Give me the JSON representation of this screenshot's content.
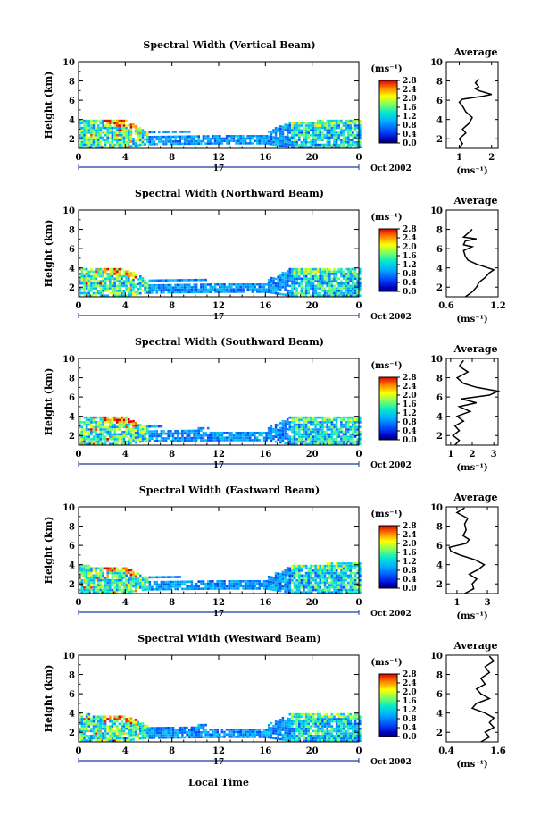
{
  "panels": [
    {
      "title": "Spectral Width (Vertical Beam)",
      "avg_xticks": [
        "1",
        "2"
      ],
      "avg_xticks_pos": [
        1,
        2
      ],
      "avg_xlim": [
        0.6,
        2.2
      ],
      "avg_profile": [
        [
          1.0,
          1.0
        ],
        [
          1.1,
          1.5
        ],
        [
          1.0,
          2.0
        ],
        [
          1.2,
          2.6
        ],
        [
          1.1,
          3.0
        ],
        [
          1.3,
          3.6
        ],
        [
          1.4,
          4.2
        ],
        [
          1.2,
          4.8
        ],
        [
          1.1,
          5.4
        ],
        [
          1.0,
          5.8
        ],
        [
          1.1,
          6.1
        ],
        [
          1.7,
          6.4
        ],
        [
          2.0,
          6.6
        ],
        [
          1.8,
          6.8
        ],
        [
          1.6,
          7.0
        ],
        [
          1.5,
          7.2
        ],
        [
          1.6,
          7.4
        ],
        [
          1.5,
          7.8
        ],
        [
          1.6,
          8.2
        ]
      ],
      "ts_extent": [
        [
          0,
          1.0,
          4.0
        ],
        [
          4,
          1.0,
          3.8
        ],
        [
          5.5,
          1.3,
          2.8
        ],
        [
          12,
          1.4,
          2.5
        ],
        [
          16,
          1.4,
          2.6
        ],
        [
          18,
          1.0,
          3.6
        ],
        [
          24,
          1.0,
          4.0
        ]
      ],
      "gap": [
        6,
        18,
        2.3
      ]
    },
    {
      "title": "Spectral Width (Northward Beam)",
      "avg_xticks": [
        "0.6",
        "1.2"
      ],
      "avg_xticks_pos": [
        0.6,
        1.2
      ],
      "avg_xlim": [
        0.6,
        1.2
      ],
      "avg_profile": [
        [
          0.82,
          1.0
        ],
        [
          0.9,
          1.5
        ],
        [
          0.95,
          2.0
        ],
        [
          0.98,
          2.5
        ],
        [
          1.05,
          3.0
        ],
        [
          1.1,
          3.5
        ],
        [
          1.15,
          3.8
        ],
        [
          1.05,
          4.1
        ],
        [
          0.95,
          4.4
        ],
        [
          0.85,
          4.8
        ],
        [
          0.82,
          5.2
        ],
        [
          0.8,
          5.8
        ],
        [
          0.9,
          6.2
        ],
        [
          0.8,
          6.4
        ],
        [
          0.82,
          6.8
        ],
        [
          0.95,
          7.0
        ],
        [
          0.8,
          7.2
        ],
        [
          0.85,
          7.6
        ],
        [
          0.9,
          8.0
        ]
      ],
      "ts_extent": [
        [
          0,
          1.0,
          4.0
        ],
        [
          4,
          1.0,
          3.8
        ],
        [
          5.5,
          1.3,
          2.8
        ],
        [
          12,
          1.4,
          2.6
        ],
        [
          16,
          1.4,
          2.6
        ],
        [
          18,
          1.0,
          3.8
        ],
        [
          24,
          1.0,
          4.0
        ]
      ],
      "gap": [
        6,
        18,
        2.4
      ]
    },
    {
      "title": "Spectral Width (Southward Beam)",
      "avg_xticks": [
        "1",
        "2",
        "3"
      ],
      "avg_xticks_pos": [
        1,
        2,
        3
      ],
      "avg_xlim": [
        0.8,
        3.2
      ],
      "avg_profile": [
        [
          1.2,
          1.0
        ],
        [
          1.4,
          1.5
        ],
        [
          1.1,
          2.0
        ],
        [
          1.4,
          2.5
        ],
        [
          1.2,
          3.0
        ],
        [
          1.6,
          3.5
        ],
        [
          1.3,
          4.0
        ],
        [
          1.9,
          4.5
        ],
        [
          1.4,
          5.0
        ],
        [
          2.2,
          5.4
        ],
        [
          1.5,
          5.8
        ],
        [
          2.8,
          6.2
        ],
        [
          3.2,
          6.6
        ],
        [
          2.2,
          7.0
        ],
        [
          1.6,
          7.4
        ],
        [
          1.3,
          8.0
        ],
        [
          1.8,
          8.6
        ],
        [
          1.4,
          9.2
        ],
        [
          1.6,
          9.8
        ]
      ],
      "ts_extent": [
        [
          0,
          1.0,
          4.0
        ],
        [
          4,
          1.0,
          3.8
        ],
        [
          5.5,
          1.3,
          2.9
        ],
        [
          12,
          1.4,
          2.6
        ],
        [
          16,
          1.4,
          2.6
        ],
        [
          18,
          1.0,
          3.8
        ],
        [
          24,
          1.0,
          4.0
        ]
      ],
      "gap": [
        6,
        18,
        2.5
      ]
    },
    {
      "title": "Spectral Width (Eastward Beam)",
      "avg_xticks": [
        "1",
        "3"
      ],
      "avg_xticks_pos": [
        1,
        3
      ],
      "avg_xlim": [
        0.3,
        3.7
      ],
      "avg_profile": [
        [
          1.5,
          1.0
        ],
        [
          2.1,
          1.5
        ],
        [
          2.0,
          2.0
        ],
        [
          2.3,
          2.5
        ],
        [
          1.8,
          3.0
        ],
        [
          2.4,
          3.5
        ],
        [
          2.8,
          4.0
        ],
        [
          2.2,
          4.5
        ],
        [
          1.2,
          5.0
        ],
        [
          0.6,
          5.4
        ],
        [
          0.5,
          5.8
        ],
        [
          1.6,
          6.2
        ],
        [
          1.8,
          6.6
        ],
        [
          1.4,
          7.0
        ],
        [
          1.6,
          7.6
        ],
        [
          1.5,
          8.2
        ],
        [
          1.7,
          8.8
        ],
        [
          1.0,
          9.4
        ],
        [
          1.5,
          9.9
        ]
      ],
      "ts_extent": [
        [
          0,
          1.0,
          3.8
        ],
        [
          4,
          1.0,
          3.6
        ],
        [
          5.5,
          1.3,
          2.7
        ],
        [
          12,
          1.4,
          2.5
        ],
        [
          16,
          1.4,
          2.5
        ],
        [
          18,
          1.0,
          3.8
        ],
        [
          24,
          1.0,
          4.2
        ]
      ],
      "gap": [
        6,
        18,
        2.4
      ]
    },
    {
      "title": "Spectral Width (Westward Beam)",
      "avg_xticks": [
        "0.4",
        "1.6"
      ],
      "avg_xticks_pos": [
        0.4,
        1.6
      ],
      "avg_xlim": [
        0.4,
        1.6
      ],
      "avg_profile": [
        [
          1.2,
          1.0
        ],
        [
          1.4,
          1.5
        ],
        [
          1.3,
          2.0
        ],
        [
          1.5,
          2.5
        ],
        [
          1.4,
          3.0
        ],
        [
          1.5,
          3.5
        ],
        [
          1.3,
          4.0
        ],
        [
          1.0,
          4.5
        ],
        [
          1.1,
          5.0
        ],
        [
          1.4,
          5.5
        ],
        [
          1.2,
          6.0
        ],
        [
          1.1,
          6.5
        ],
        [
          1.3,
          7.0
        ],
        [
          1.2,
          7.6
        ],
        [
          1.4,
          8.2
        ],
        [
          1.3,
          8.8
        ],
        [
          1.5,
          9.4
        ],
        [
          1.4,
          9.9
        ]
      ],
      "ts_extent": [
        [
          0,
          1.0,
          3.8
        ],
        [
          4,
          1.0,
          3.6
        ],
        [
          5.5,
          1.3,
          2.8
        ],
        [
          12,
          1.4,
          2.6
        ],
        [
          16,
          1.4,
          2.6
        ],
        [
          18,
          1.0,
          3.8
        ],
        [
          24,
          1.0,
          4.0
        ]
      ],
      "gap": [
        6,
        18,
        2.5
      ]
    }
  ],
  "ylabel": "Height (km)",
  "yticks": [
    "2",
    "4",
    "6",
    "8",
    "10"
  ],
  "xticks": [
    "0",
    "4",
    "8",
    "12",
    "16",
    "20",
    "0"
  ],
  "avg_title": "Average",
  "avg_xlabel": "(ms⁻¹)",
  "colorbar_unit": "(ms⁻¹)",
  "colorbar_ticks": [
    "2.8",
    "2.4",
    "2.0",
    "1.6",
    "1.2",
    "0.8",
    "0.4",
    "0.0"
  ],
  "day_label": "17",
  "date_label": "Oct 2002",
  "xlabel_bottom": "Local Time",
  "colors": {
    "text": "#000000",
    "cmap_low": "#000080",
    "cmap_mid": "#00e0e0",
    "cmap_high": "#ff0000"
  },
  "chart_data": [
    {
      "type": "heatmap",
      "title": "Spectral Width (Vertical Beam)",
      "x_range": [
        0,
        24
      ],
      "y_range": [
        1,
        10
      ],
      "xlabel": "",
      "ylabel": "Height (km)",
      "colorbar_range": [
        0.0,
        2.8
      ],
      "colorbar_unit": "(ms⁻¹)"
    },
    {
      "type": "heatmap",
      "title": "Spectral Width (Northward Beam)",
      "x_range": [
        0,
        24
      ],
      "y_range": [
        1,
        10
      ],
      "xlabel": "",
      "ylabel": "Height (km)",
      "colorbar_range": [
        0.0,
        2.8
      ],
      "colorbar_unit": "(ms⁻¹)"
    },
    {
      "type": "heatmap",
      "title": "Spectral Width (Southward Beam)",
      "x_range": [
        0,
        24
      ],
      "y_range": [
        1,
        10
      ],
      "xlabel": "",
      "ylabel": "Height (km)",
      "colorbar_range": [
        0.0,
        2.8
      ],
      "colorbar_unit": "(ms⁻¹)"
    },
    {
      "type": "heatmap",
      "title": "Spectral Width (Eastward Beam)",
      "x_range": [
        0,
        24
      ],
      "y_range": [
        1,
        10
      ],
      "xlabel": "",
      "ylabel": "Height (km)",
      "colorbar_range": [
        0.0,
        2.8
      ],
      "colorbar_unit": "(ms⁻¹)"
    },
    {
      "type": "heatmap",
      "title": "Spectral Width (Westward Beam)",
      "x_range": [
        0,
        24
      ],
      "y_range": [
        1,
        10
      ],
      "xlabel": "Local Time",
      "ylabel": "Height (km)",
      "colorbar_range": [
        0.0,
        2.8
      ],
      "colorbar_unit": "(ms⁻¹)"
    }
  ]
}
